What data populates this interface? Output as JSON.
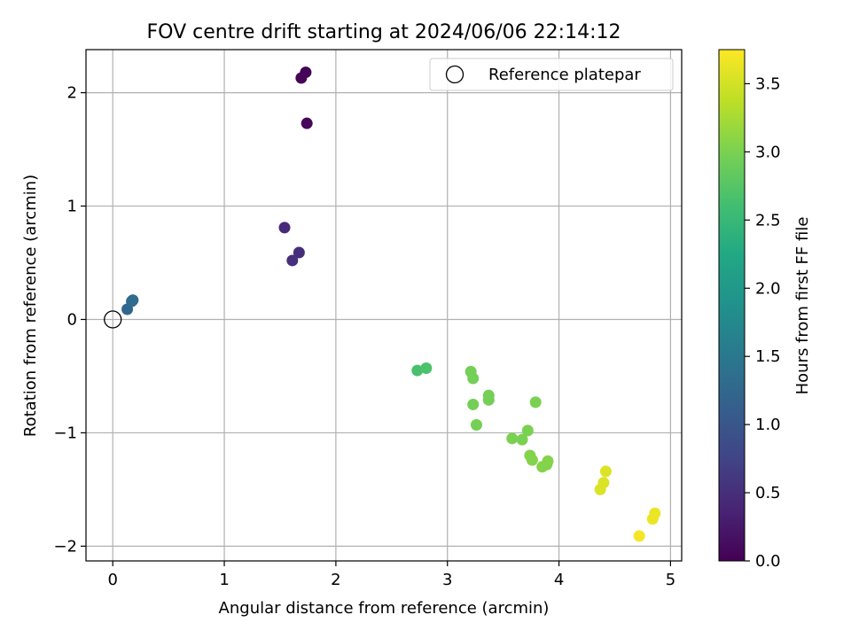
{
  "chart_data": {
    "type": "scatter",
    "title": "FOV centre drift starting at 2024/06/06 22:14:12",
    "xlabel": "Angular distance from reference (arcmin)",
    "ylabel": "Rotation from reference (arcmin)",
    "xlim": [
      -0.24,
      5.1
    ],
    "ylim": [
      -2.13,
      2.38
    ],
    "xticks": [
      0,
      1,
      2,
      3,
      4,
      5
    ],
    "yticks": [
      -2,
      -1,
      0,
      1,
      2
    ],
    "xtick_labels": [
      "0",
      "1",
      "2",
      "3",
      "4",
      "5"
    ],
    "ytick_labels": [
      "−2",
      "−1",
      "0",
      "1",
      "2"
    ],
    "grid": true,
    "legend": {
      "placement": "top-right",
      "entries": [
        "Reference platepar"
      ]
    },
    "reference_point": {
      "x": 0,
      "y": 0
    },
    "colorbar": {
      "label": "Hours from first FF file",
      "colormap": "viridis",
      "range": [
        0,
        3.75
      ],
      "ticks": [
        0,
        0.5,
        1,
        1.5,
        2,
        2.5,
        3,
        3.5
      ],
      "tick_labels": [
        "0.0",
        "0.5",
        "1.0",
        "1.5",
        "2.0",
        "2.5",
        "3.0",
        "3.5"
      ]
    },
    "points": [
      {
        "x": 1.73,
        "y": 2.18,
        "hours": 0.02
      },
      {
        "x": 1.69,
        "y": 2.13,
        "hours": 0.05
      },
      {
        "x": 1.74,
        "y": 1.73,
        "hours": 0.07
      },
      {
        "x": 1.54,
        "y": 0.81,
        "hours": 0.45
      },
      {
        "x": 1.67,
        "y": 0.59,
        "hours": 0.48
      },
      {
        "x": 1.61,
        "y": 0.52,
        "hours": 0.5
      },
      {
        "x": 0.13,
        "y": 0.09,
        "hours": 1.25
      },
      {
        "x": 0.17,
        "y": 0.16,
        "hours": 1.3
      },
      {
        "x": 0.18,
        "y": 0.17,
        "hours": 1.32
      },
      {
        "x": 2.73,
        "y": -0.45,
        "hours": 2.65
      },
      {
        "x": 2.81,
        "y": -0.43,
        "hours": 2.68
      },
      {
        "x": 3.21,
        "y": -0.46,
        "hours": 2.95
      },
      {
        "x": 3.23,
        "y": -0.52,
        "hours": 2.95
      },
      {
        "x": 3.37,
        "y": -0.67,
        "hours": 2.95
      },
      {
        "x": 3.37,
        "y": -0.71,
        "hours": 2.95
      },
      {
        "x": 3.23,
        "y": -0.75,
        "hours": 2.95
      },
      {
        "x": 3.79,
        "y": -0.73,
        "hours": 3.0
      },
      {
        "x": 3.26,
        "y": -0.93,
        "hours": 2.95
      },
      {
        "x": 3.72,
        "y": -0.98,
        "hours": 3.0
      },
      {
        "x": 3.58,
        "y": -1.05,
        "hours": 3.0
      },
      {
        "x": 3.67,
        "y": -1.06,
        "hours": 3.0
      },
      {
        "x": 3.74,
        "y": -1.2,
        "hours": 3.05
      },
      {
        "x": 3.76,
        "y": -1.24,
        "hours": 3.05
      },
      {
        "x": 3.9,
        "y": -1.25,
        "hours": 3.05
      },
      {
        "x": 3.89,
        "y": -1.28,
        "hours": 3.05
      },
      {
        "x": 3.85,
        "y": -1.3,
        "hours": 3.05
      },
      {
        "x": 4.42,
        "y": -1.34,
        "hours": 3.55
      },
      {
        "x": 4.4,
        "y": -1.44,
        "hours": 3.55
      },
      {
        "x": 4.37,
        "y": -1.5,
        "hours": 3.55
      },
      {
        "x": 4.86,
        "y": -1.71,
        "hours": 3.65
      },
      {
        "x": 4.84,
        "y": -1.76,
        "hours": 3.65
      },
      {
        "x": 4.72,
        "y": -1.91,
        "hours": 3.7
      }
    ]
  }
}
